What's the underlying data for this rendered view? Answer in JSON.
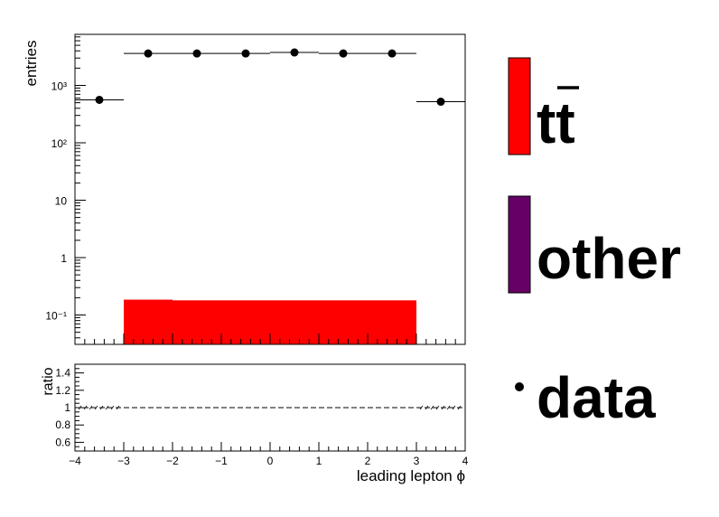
{
  "chart_data": [
    {
      "type": "bar",
      "panel": "main",
      "ylabel": "entries",
      "xlim": [
        -4,
        4
      ],
      "ylim": [
        0.03,
        7000
      ],
      "yscale": "log",
      "ytick_labels": [
        "10⁻¹",
        "1",
        "10",
        "10²",
        "10³"
      ],
      "ytick_values": [
        0.1,
        1,
        10,
        100,
        1000
      ],
      "bins": [
        {
          "x_low": -4,
          "x_high": -3,
          "tt": 0,
          "other": 0,
          "data": 560
        },
        {
          "x_low": -3,
          "x_high": -2,
          "tt": 0.185,
          "other": 0,
          "data": 3600
        },
        {
          "x_low": -2,
          "x_high": -1,
          "tt": 0.18,
          "other": 0,
          "data": 3600
        },
        {
          "x_low": -1,
          "x_high": 0,
          "tt": 0.18,
          "other": 0,
          "data": 3600
        },
        {
          "x_low": 0,
          "x_high": 1,
          "tt": 0.18,
          "other": 0,
          "data": 3750
        },
        {
          "x_low": 1,
          "x_high": 2,
          "tt": 0.18,
          "other": 0,
          "data": 3600
        },
        {
          "x_low": 2,
          "x_high": 3,
          "tt": 0.18,
          "other": 0,
          "data": 3600
        },
        {
          "x_low": 3,
          "x_high": 4,
          "tt": 0,
          "other": 0,
          "data": 520
        }
      ]
    },
    {
      "type": "line",
      "panel": "ratio",
      "ylabel": "ratio",
      "xlabel": "leading lepton ϕ",
      "xlim": [
        -4,
        4
      ],
      "ylim": [
        0.5,
        1.5
      ],
      "ytick_labels": [
        "0.6",
        "0.8",
        "1",
        "1.2",
        "1.4"
      ],
      "ytick_values": [
        0.6,
        0.8,
        1.0,
        1.2,
        1.4
      ],
      "xtick_labels": [
        "−4",
        "−3",
        "−2",
        "−1",
        "0",
        "1",
        "2",
        "3",
        "4"
      ],
      "xtick_values": [
        -4,
        -3,
        -2,
        -1,
        0,
        1,
        2,
        3,
        4
      ],
      "reference_line": 1.0
    }
  ],
  "legend": {
    "entries": [
      {
        "name": "tt",
        "color": "#ff0000"
      },
      {
        "name": "other",
        "color": "#660066"
      },
      {
        "name": "data",
        "color": "#000000"
      }
    ]
  }
}
